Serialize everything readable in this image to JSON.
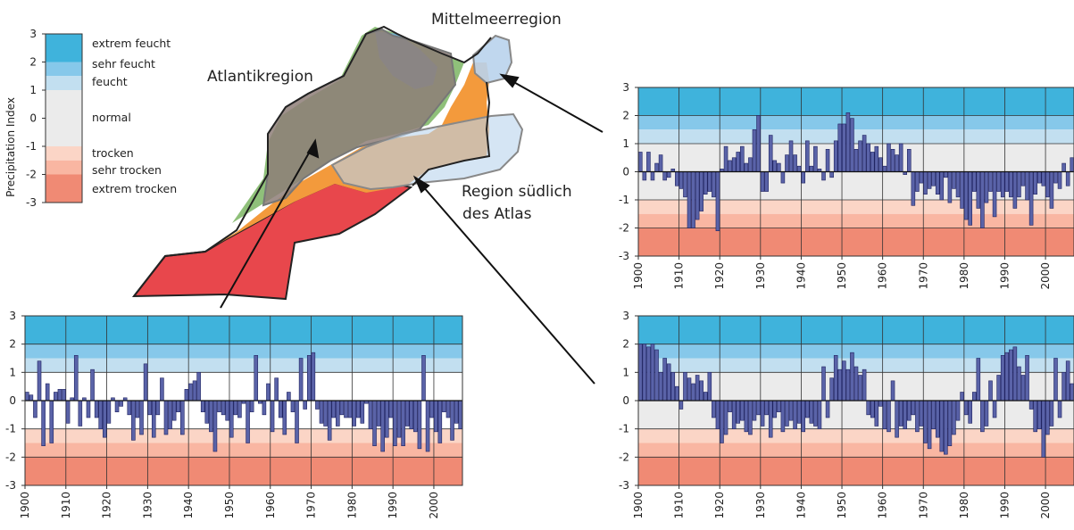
{
  "regions": {
    "mediterranean": "Mittelmeerregion",
    "atlantic": "Atlantikregion",
    "south_line1": "Region südlich",
    "south_line2": "des Atlas"
  },
  "legend": {
    "axis_title": "Precipitation Index",
    "ticks": [
      "3",
      "2",
      "1",
      "0",
      "-1",
      "-2",
      "-3"
    ],
    "classes": [
      {
        "label": "extrem feucht",
        "range": [
          2,
          3
        ],
        "color": "#3fb3dc"
      },
      {
        "label": "sehr feucht",
        "range": [
          1.5,
          2
        ],
        "color": "#86c8ea"
      },
      {
        "label": "feucht",
        "range": [
          1,
          1.5
        ],
        "color": "#c2dff0"
      },
      {
        "label": "normal",
        "range": [
          -1,
          1
        ],
        "color": "#ebebeb"
      },
      {
        "label": "trocken",
        "range": [
          -1.5,
          -1
        ],
        "color": "#fbd5c6"
      },
      {
        "label": "sehr trocken",
        "range": [
          -2,
          -1.5
        ],
        "color": "#f9b6a2"
      },
      {
        "label": "extrem trocken",
        "range": [
          -3,
          -2
        ],
        "color": "#f08a74"
      }
    ]
  },
  "colors": {
    "bar_fill": "#5a63a8",
    "bar_stroke": "#1e2260",
    "map_red": "#e8474c",
    "map_orange": "#f39a3c",
    "map_green": "#8fc07a",
    "map_blue": "#6ea8d8",
    "region_fill": "#b9d3ec",
    "atlantic_overlay": "#8e7e78"
  },
  "chart_data": [
    {
      "type": "bar",
      "region": "Atlantikregion",
      "x_start": 1900,
      "x_end": 2006,
      "xticks": [
        1900,
        1910,
        1920,
        1930,
        1940,
        1950,
        1960,
        1970,
        1980,
        1990,
        2000
      ],
      "yticks": [
        3,
        2,
        1,
        0,
        -1,
        -2,
        -3
      ],
      "ylim": [
        -3,
        3
      ],
      "normal_band_color": "#ffffff",
      "values": [
        0.3,
        0.2,
        -0.6,
        1.4,
        -1.6,
        0.6,
        -1.5,
        0.3,
        0.4,
        0.4,
        -0.8,
        0.1,
        1.6,
        -0.9,
        0.1,
        -0.6,
        1.1,
        -0.6,
        -1.0,
        -1.3,
        -0.8,
        0.1,
        -0.4,
        -0.2,
        0.1,
        -0.5,
        -1.4,
        -0.6,
        -1.2,
        1.3,
        -0.5,
        -1.3,
        -0.5,
        0.8,
        -1.2,
        -1.0,
        -0.7,
        -0.4,
        -1.2,
        0.4,
        0.6,
        0.7,
        1.0,
        -0.4,
        -0.8,
        -1.1,
        -1.8,
        -0.4,
        -0.5,
        -0.7,
        -1.3,
        -0.5,
        -0.6,
        -0.1,
        -1.5,
        -0.4,
        1.6,
        -0.1,
        -0.5,
        0.6,
        -1.1,
        0.8,
        -0.6,
        -1.2,
        0.3,
        -0.4,
        -1.5,
        1.5,
        -0.3,
        1.6,
        1.7,
        -0.3,
        -0.8,
        -0.9,
        -1.4,
        -0.6,
        -0.9,
        -0.5,
        -0.6,
        -0.6,
        -0.9,
        -0.6,
        -0.8,
        -0.1,
        -1.0,
        -1.6,
        -0.9,
        -1.8,
        -1.3,
        -0.6,
        -1.6,
        -1.3,
        -1.6,
        -0.9,
        -1.0,
        -1.1,
        -1.7,
        1.6,
        -1.8,
        -0.6,
        -1.1,
        -1.5,
        -0.4,
        -0.6,
        -1.4,
        -0.8,
        -1.0
      ]
    },
    {
      "type": "bar",
      "region": "Mittelmeerregion",
      "x_start": 1900,
      "x_end": 2006,
      "xticks": [
        1900,
        1910,
        1920,
        1930,
        1940,
        1950,
        1960,
        1970,
        1980,
        1990,
        2000
      ],
      "yticks": [
        3,
        2,
        1,
        0,
        -1,
        -2,
        -3
      ],
      "ylim": [
        -3,
        3
      ],
      "normal_band_color": "#ebebeb",
      "values": [
        0.7,
        -0.3,
        0.7,
        -0.3,
        0.3,
        0.6,
        -0.3,
        -0.2,
        0.1,
        -0.5,
        -0.6,
        -0.9,
        -2.0,
        -2.0,
        -1.7,
        -1.4,
        -0.8,
        -0.7,
        -0.9,
        -2.1,
        0.1,
        0.9,
        0.4,
        0.5,
        0.7,
        0.9,
        0.3,
        0.5,
        1.5,
        2.0,
        -0.7,
        -0.7,
        1.3,
        0.4,
        0.3,
        -0.4,
        0.6,
        1.1,
        0.6,
        0.2,
        -0.4,
        1.1,
        0.2,
        0.9,
        0.1,
        -0.3,
        0.8,
        -0.2,
        1.1,
        1.7,
        1.7,
        2.1,
        1.9,
        0.8,
        1.1,
        1.3,
        1.0,
        0.7,
        0.9,
        0.5,
        0.2,
        1.0,
        0.8,
        0.6,
        1.0,
        -0.1,
        0.8,
        -1.2,
        -0.7,
        -0.4,
        -0.8,
        -0.6,
        -0.5,
        -0.8,
        -1.0,
        -0.2,
        -1.1,
        -0.6,
        -0.9,
        -1.3,
        -1.7,
        -1.9,
        -0.7,
        -1.3,
        -2.0,
        -1.1,
        -0.7,
        -1.6,
        -0.7,
        -0.9,
        -0.7,
        -0.9,
        -1.3,
        -0.9,
        -0.5,
        -1.0,
        -1.9,
        -0.8,
        -0.4,
        -0.5,
        -0.9,
        -1.3,
        -0.4,
        -0.6,
        0.3,
        -0.5,
        0.5
      ]
    },
    {
      "type": "bar",
      "region": "Region südlich des Atlas",
      "x_start": 1900,
      "x_end": 2006,
      "xticks": [
        1900,
        1910,
        1920,
        1930,
        1940,
        1950,
        1960,
        1970,
        1980,
        1990,
        2000
      ],
      "yticks": [
        3,
        2,
        1,
        0,
        -1,
        -2,
        -3
      ],
      "ylim": [
        -3,
        3
      ],
      "normal_band_color": "#ebebeb",
      "values": [
        2.0,
        2.0,
        1.9,
        2.0,
        1.8,
        1.0,
        1.5,
        1.3,
        1.0,
        0.5,
        -0.3,
        1.0,
        0.8,
        0.6,
        0.9,
        0.7,
        0.3,
        1.0,
        -0.6,
        -1.0,
        -1.5,
        -1.2,
        -0.4,
        -1.0,
        -0.8,
        -0.7,
        -1.1,
        -1.2,
        -0.7,
        -0.5,
        -0.9,
        -0.5,
        -1.3,
        -0.6,
        -0.4,
        -1.1,
        -0.9,
        -0.7,
        -1.0,
        -0.8,
        -1.1,
        -0.6,
        -0.8,
        -0.9,
        -1.0,
        1.2,
        -0.6,
        0.8,
        1.6,
        1.1,
        1.4,
        1.1,
        1.7,
        1.2,
        0.9,
        1.1,
        -0.5,
        -0.6,
        -0.9,
        -0.2,
        -1.0,
        -1.1,
        0.7,
        -1.3,
        -0.9,
        -1.0,
        -0.7,
        -0.5,
        -1.1,
        -0.9,
        -1.5,
        -1.7,
        -1.0,
        -1.3,
        -1.8,
        -1.9,
        -1.6,
        -1.2,
        -0.7,
        0.3,
        -0.5,
        -0.8,
        0.3,
        1.5,
        -1.1,
        -0.9,
        0.7,
        -0.6,
        0.9,
        1.6,
        1.7,
        1.8,
        1.9,
        1.2,
        0.9,
        1.6,
        -0.3,
        -1.1,
        -1.0,
        -2.0,
        -1.2,
        -0.9,
        1.5,
        -0.6,
        1.0,
        1.4,
        0.6
      ]
    }
  ]
}
